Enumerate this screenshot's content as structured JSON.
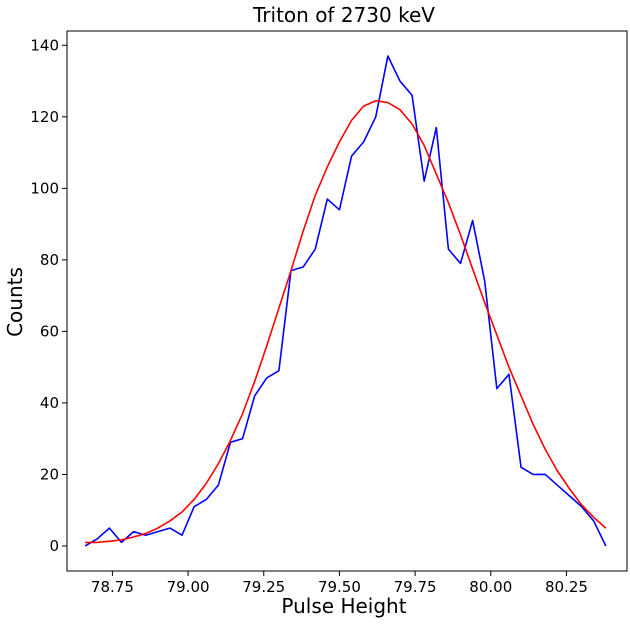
{
  "chart_data": {
    "type": "line",
    "title": "Triton of 2730 keV",
    "xlabel": "Pulse Height",
    "ylabel": "Counts",
    "xlim": [
      78.6,
      80.45
    ],
    "ylim": [
      -7,
      144
    ],
    "x_ticks": [
      78.75,
      79.0,
      79.25,
      79.5,
      79.75,
      80.0,
      80.25
    ],
    "x_tick_labels": [
      "78.75",
      "79.00",
      "79.25",
      "79.50",
      "79.75",
      "80.00",
      "80.25"
    ],
    "y_ticks": [
      0,
      20,
      40,
      60,
      80,
      100,
      120,
      140
    ],
    "y_tick_labels": [
      "0",
      "20",
      "40",
      "60",
      "80",
      "100",
      "120",
      "140"
    ],
    "grid": false,
    "series": [
      {
        "color": "#0000ff",
        "x": [
          78.66,
          78.7,
          78.74,
          78.78,
          78.82,
          78.86,
          78.9,
          78.94,
          78.98,
          79.02,
          79.06,
          79.1,
          79.14,
          79.18,
          79.22,
          79.26,
          79.3,
          79.34,
          79.38,
          79.42,
          79.46,
          79.5,
          79.54,
          79.58,
          79.62,
          79.66,
          79.7,
          79.74,
          79.78,
          79.82,
          79.86,
          79.9,
          79.94,
          79.98,
          80.02,
          80.06,
          80.1,
          80.14,
          80.18,
          80.22,
          80.26,
          80.3,
          80.34,
          80.38
        ],
        "y": [
          0,
          2,
          5,
          1,
          4,
          3,
          4,
          5,
          3,
          11,
          13,
          17,
          29,
          30,
          42,
          47,
          49,
          77,
          78,
          83,
          97,
          94,
          109,
          113,
          120,
          137,
          130,
          126,
          102,
          117,
          83,
          79,
          91,
          74,
          44,
          48,
          22,
          20,
          20,
          17,
          14,
          11,
          7,
          0
        ]
      },
      {
        "color": "#ff0000",
        "x": [
          78.66,
          78.7,
          78.74,
          78.78,
          78.82,
          78.86,
          78.9,
          78.94,
          78.98,
          79.02,
          79.06,
          79.1,
          79.14,
          79.18,
          79.22,
          79.26,
          79.3,
          79.34,
          79.38,
          79.42,
          79.46,
          79.5,
          79.54,
          79.58,
          79.62,
          79.66,
          79.7,
          79.74,
          79.78,
          79.82,
          79.86,
          79.9,
          79.94,
          79.98,
          80.02,
          80.06,
          80.1,
          80.14,
          80.18,
          80.22,
          80.26,
          80.3,
          80.34,
          80.38
        ],
        "y": [
          1,
          1,
          1.3,
          1.7,
          2.5,
          3.5,
          5,
          7,
          9.5,
          13,
          17.5,
          23,
          29.5,
          37,
          46,
          56,
          66.5,
          77,
          88,
          98,
          106,
          113,
          119,
          123,
          124.5,
          124,
          122,
          118,
          112,
          104,
          96,
          87,
          77.5,
          68,
          59,
          50,
          42,
          34,
          27,
          21,
          16,
          11.5,
          8,
          5
        ]
      }
    ]
  }
}
